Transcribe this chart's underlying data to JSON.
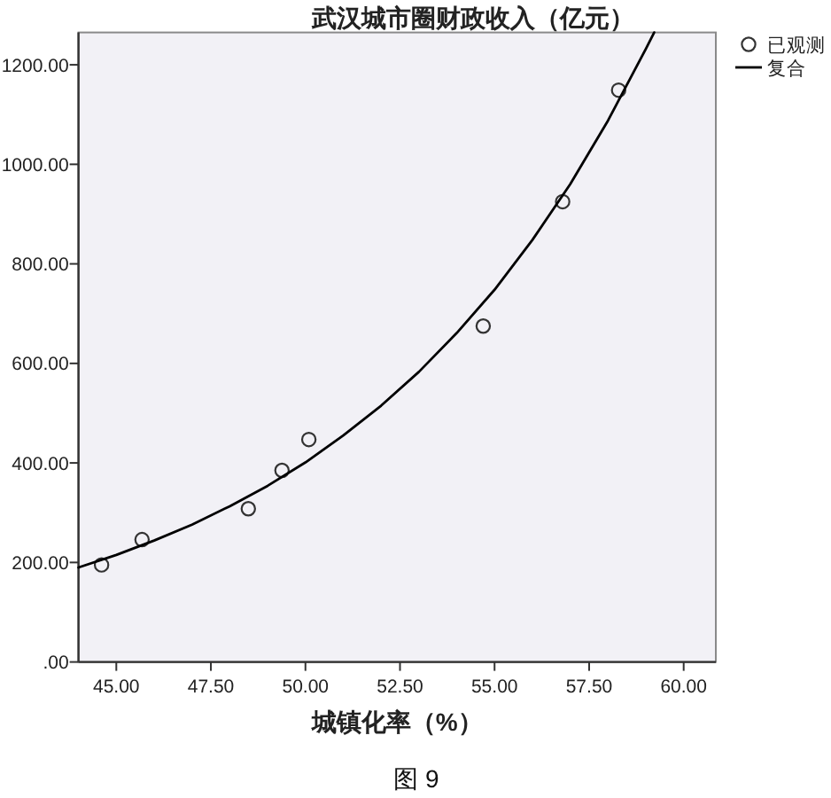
{
  "chart_data": {
    "type": "scatter",
    "title": "武汉城市圈财政收入（亿元）",
    "xlabel": "城镇化率（%）",
    "annotations": [
      "图 9"
    ],
    "xlim": [
      44,
      60.85
    ],
    "ylim": [
      0,
      1265
    ],
    "xticks": [
      {
        "value": 45,
        "label": "45.00"
      },
      {
        "value": 47.5,
        "label": "47.50"
      },
      {
        "value": 50,
        "label": "50.00"
      },
      {
        "value": 52.5,
        "label": "52.50"
      },
      {
        "value": 55,
        "label": "55.00"
      },
      {
        "value": 57.5,
        "label": "57.50"
      },
      {
        "value": 60,
        "label": "60.00"
      }
    ],
    "yticks": [
      {
        "value": 0,
        "label": ".00"
      },
      {
        "value": 200,
        "label": "200.00"
      },
      {
        "value": 400,
        "label": "400.00"
      },
      {
        "value": 600,
        "label": "600.00"
      },
      {
        "value": 800,
        "label": "800.00"
      },
      {
        "value": 1000,
        "label": "1000.00"
      },
      {
        "value": 1200,
        "label": "1200.00"
      }
    ],
    "legend": "top right",
    "series": [
      {
        "name": "已观测",
        "type": "scatter",
        "marker": "circle",
        "color": "#333333",
        "x": [
          44.61,
          45.68,
          48.49,
          49.38,
          50.09,
          54.7,
          56.8,
          58.28
        ],
        "values": [
          195,
          246,
          308,
          385,
          447,
          675,
          925,
          1149
        ]
      },
      {
        "name": "复合",
        "type": "line",
        "marker": "none",
        "color": "#000000",
        "x": [
          44,
          45,
          46,
          47,
          48,
          49,
          50,
          51,
          52,
          53,
          54,
          55,
          56,
          57,
          58,
          59,
          59.22
        ],
        "values": [
          190,
          215,
          244,
          276,
          313,
          354,
          401,
          455,
          515,
          583,
          661,
          748,
          848,
          960,
          1088,
          1232,
          1265
        ]
      }
    ]
  }
}
